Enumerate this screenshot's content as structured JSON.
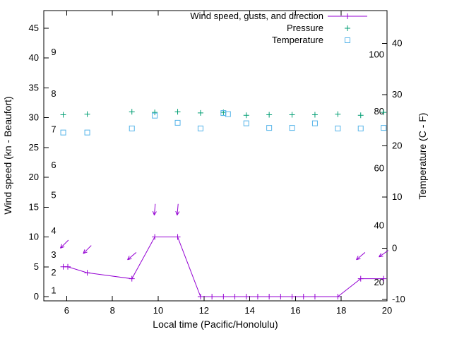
{
  "chart_data": {
    "type": "line",
    "legend_position": "top-right-inside",
    "legend": [
      {
        "series": "wind",
        "label": "Wind speed, gusts, and direction",
        "marker": "line-plus",
        "color": "#9400d3"
      },
      {
        "series": "pressure",
        "label": "Pressure",
        "marker": "plus",
        "color": "#009e73"
      },
      {
        "series": "temperature",
        "label": "Temperature",
        "marker": "square",
        "color": "#56b4e9"
      }
    ],
    "xlabel": "Local time (Pacific/Honolulu)",
    "ylabel_left": "Wind speed (kn - Beaufort)",
    "ylabel_right": "Temperature (C - F)",
    "xlim": [
      5,
      20
    ],
    "x_ticks": [
      6,
      8,
      10,
      12,
      14,
      16,
      18,
      20
    ],
    "left_ticks": [
      0,
      5,
      10,
      15,
      20,
      25,
      30,
      35,
      40,
      45
    ],
    "right_ticks": [
      -10,
      0,
      10,
      20,
      30,
      40
    ],
    "beaufort_labels": [
      {
        "label": "1",
        "kn": 1
      },
      {
        "label": "2",
        "kn": 4
      },
      {
        "label": "3",
        "kn": 7
      },
      {
        "label": "4",
        "kn": 11
      },
      {
        "label": "5",
        "kn": 17
      },
      {
        "label": "6",
        "kn": 22
      },
      {
        "label": "7",
        "kn": 28
      },
      {
        "label": "8",
        "kn": 34
      },
      {
        "label": "9",
        "kn": 41
      }
    ],
    "fahrenheit_labels": [
      {
        "label": "20",
        "c": -6.7
      },
      {
        "label": "40",
        "c": 4.4
      },
      {
        "label": "60",
        "c": 15.6
      },
      {
        "label": "80",
        "c": 26.7
      },
      {
        "label": "100",
        "c": 37.8
      }
    ],
    "series": {
      "wind_speed_kn": {
        "x": [
          5.85,
          6.05,
          6.9,
          8.85,
          9.85,
          10.85,
          11.85,
          12.35,
          12.85,
          13.35,
          13.85,
          14.35,
          14.85,
          15.35,
          15.85,
          16.35,
          16.85,
          17.85,
          18.85,
          19.85
        ],
        "y": [
          5,
          5,
          4,
          3,
          10,
          10,
          0,
          0,
          0,
          0,
          0,
          0,
          0,
          0,
          0,
          0,
          0,
          0,
          3,
          3
        ]
      },
      "wind_direction_arrows": [
        {
          "x": 5.9,
          "kn": 8.8,
          "deg": 225
        },
        {
          "x": 6.9,
          "kn": 7.9,
          "deg": 225
        },
        {
          "x": 8.85,
          "kn": 6.8,
          "deg": 230
        },
        {
          "x": 9.85,
          "kn": 14.6,
          "deg": 185
        },
        {
          "x": 10.85,
          "kn": 14.6,
          "deg": 185
        },
        {
          "x": 18.85,
          "kn": 6.8,
          "deg": 230
        },
        {
          "x": 19.85,
          "kn": 7.2,
          "deg": 235
        }
      ],
      "pressure": {
        "x": [
          5.85,
          6.9,
          8.85,
          9.85,
          10.85,
          11.85,
          12.85,
          13.85,
          14.85,
          15.85,
          16.85,
          17.85,
          18.85,
          19.85
        ],
        "y": [
          30.5,
          30.6,
          31.0,
          30.9,
          31.0,
          30.8,
          30.9,
          30.4,
          30.5,
          30.5,
          30.5,
          30.6,
          30.4,
          30.9
        ]
      },
      "temperature_c": {
        "x": [
          5.85,
          6.9,
          8.85,
          9.85,
          10.85,
          11.85,
          12.85,
          13.05,
          13.85,
          14.85,
          15.85,
          16.85,
          17.85,
          18.85,
          19.85
        ],
        "y": [
          22.6,
          22.6,
          23.4,
          25.9,
          24.5,
          23.4,
          26.4,
          26.2,
          24.4,
          23.5,
          23.5,
          24.4,
          23.4,
          23.4,
          23.5
        ]
      }
    },
    "colors": {
      "wind": "#9400d3",
      "pressure": "#009e73",
      "temperature": "#56b4e9",
      "axis": "#000000",
      "background": "#ffffff"
    }
  }
}
